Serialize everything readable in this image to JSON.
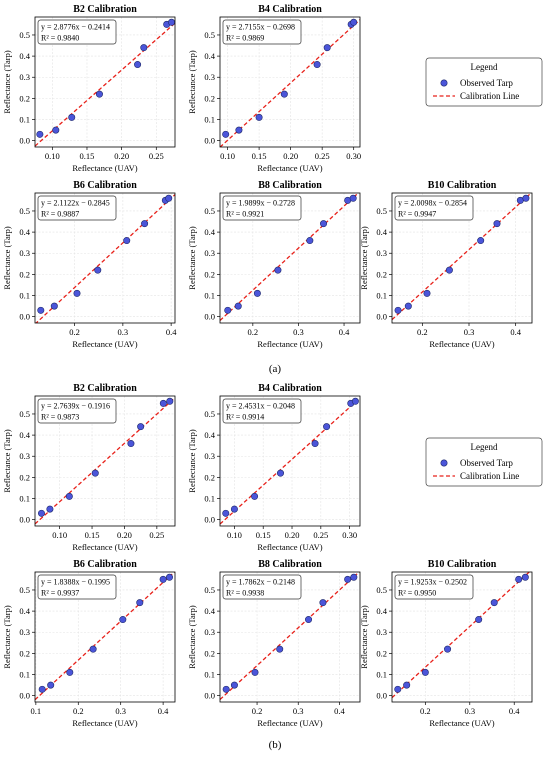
{
  "panel_a_label": "(a)",
  "panel_b_label": "(b)",
  "legend": {
    "title": "Legend",
    "observed": "Observed Tarp",
    "line": "Calibration Line"
  },
  "colors": {
    "point_fill": "#4b55d9",
    "point_edge": "#1f2a6b",
    "line": "#e8211a",
    "grid": "#e3e3e3"
  },
  "chart_data": [
    {
      "type": "scatter",
      "title": "B2 Calibration",
      "panel": "a",
      "xlabel": "Reflectance (UAV)",
      "ylabel": "Reflectance (Tarp)",
      "equation": "y = 2.8776x − 0.2414",
      "r2": "R² = 0.9840",
      "slope": 2.8776,
      "intercept": -0.2414,
      "xlim": [
        0.075,
        0.277
      ],
      "ylim": [
        -0.03,
        0.585
      ],
      "xticks": [
        0.1,
        0.15,
        0.2,
        0.25
      ],
      "xtick_labels": [
        "0.10",
        "0.15",
        "0.20",
        "0.25"
      ],
      "yticks": [
        0,
        0.1,
        0.2,
        0.3,
        0.4,
        0.5
      ],
      "ytick_labels": [
        "0.0",
        "0.1",
        "0.2",
        "0.3",
        "0.4",
        "0.5"
      ],
      "points": [
        [
          0.082,
          0.03
        ],
        [
          0.105,
          0.05
        ],
        [
          0.128,
          0.11
        ],
        [
          0.168,
          0.22
        ],
        [
          0.223,
          0.36
        ],
        [
          0.232,
          0.44
        ],
        [
          0.265,
          0.55
        ],
        [
          0.272,
          0.56
        ]
      ]
    },
    {
      "type": "scatter",
      "title": "B4 Calibration",
      "panel": "a",
      "xlabel": "Reflectance (UAV)",
      "ylabel": "Reflectance (Tarp)",
      "equation": "y = 2.7155x − 0.2698",
      "r2": "R² = 0.9869",
      "slope": 2.7155,
      "intercept": -0.2698,
      "xlim": [
        0.088,
        0.31
      ],
      "ylim": [
        -0.03,
        0.585
      ],
      "xticks": [
        0.1,
        0.15,
        0.2,
        0.25,
        0.3
      ],
      "xtick_labels": [
        "0.10",
        "0.15",
        "0.20",
        "0.25",
        "0.30"
      ],
      "yticks": [
        0,
        0.1,
        0.2,
        0.3,
        0.4,
        0.5
      ],
      "ytick_labels": [
        "0.0",
        "0.1",
        "0.2",
        "0.3",
        "0.4",
        "0.5"
      ],
      "points": [
        [
          0.097,
          0.03
        ],
        [
          0.118,
          0.05
        ],
        [
          0.15,
          0.11
        ],
        [
          0.19,
          0.22
        ],
        [
          0.242,
          0.36
        ],
        [
          0.258,
          0.44
        ],
        [
          0.296,
          0.55
        ],
        [
          0.3,
          0.56
        ]
      ]
    },
    {
      "type": "scatter",
      "title": "B6 Calibration",
      "panel": "a",
      "xlabel": "Reflectance (UAV)",
      "ylabel": "Reflectance (Tarp)",
      "equation": "y = 2.1122x − 0.2845",
      "r2": "R² = 0.9887",
      "slope": 2.1122,
      "intercept": -0.2845,
      "xlim": [
        0.118,
        0.408
      ],
      "ylim": [
        -0.03,
        0.585
      ],
      "xticks": [
        0.2,
        0.3,
        0.4
      ],
      "xtick_labels": [
        "0.2",
        "0.3",
        "0.4"
      ],
      "yticks": [
        0,
        0.1,
        0.2,
        0.3,
        0.4,
        0.5
      ],
      "ytick_labels": [
        "0.0",
        "0.1",
        "0.2",
        "0.3",
        "0.4",
        "0.5"
      ],
      "points": [
        [
          0.13,
          0.03
        ],
        [
          0.158,
          0.05
        ],
        [
          0.205,
          0.11
        ],
        [
          0.248,
          0.22
        ],
        [
          0.308,
          0.36
        ],
        [
          0.345,
          0.44
        ],
        [
          0.388,
          0.55
        ],
        [
          0.395,
          0.56
        ]
      ]
    },
    {
      "type": "scatter",
      "title": "B8 Calibration",
      "panel": "a",
      "xlabel": "Reflectance (UAV)",
      "ylabel": "Reflectance (Tarp)",
      "equation": "y = 1.9899x − 0.2728",
      "r2": "R² = 0.9921",
      "slope": 1.9899,
      "intercept": -0.2728,
      "xlim": [
        0.128,
        0.435
      ],
      "ylim": [
        -0.03,
        0.585
      ],
      "xticks": [
        0.2,
        0.3,
        0.4
      ],
      "xtick_labels": [
        "0.2",
        "0.3",
        "0.4"
      ],
      "yticks": [
        0,
        0.1,
        0.2,
        0.3,
        0.4,
        0.5
      ],
      "ytick_labels": [
        "0.0",
        "0.1",
        "0.2",
        "0.3",
        "0.4",
        "0.5"
      ],
      "points": [
        [
          0.145,
          0.03
        ],
        [
          0.168,
          0.05
        ],
        [
          0.21,
          0.11
        ],
        [
          0.255,
          0.22
        ],
        [
          0.325,
          0.36
        ],
        [
          0.355,
          0.44
        ],
        [
          0.408,
          0.55
        ],
        [
          0.42,
          0.56
        ]
      ]
    },
    {
      "type": "scatter",
      "title": "B10 Calibration",
      "panel": "a",
      "xlabel": "Reflectance (UAV)",
      "ylabel": "Reflectance (Tarp)",
      "equation": "y = 2.0098x − 0.2854",
      "r2": "R² = 0.9947",
      "slope": 2.0098,
      "intercept": -0.2854,
      "xlim": [
        0.135,
        0.435
      ],
      "ylim": [
        -0.03,
        0.585
      ],
      "xticks": [
        0.2,
        0.3,
        0.4
      ],
      "xtick_labels": [
        "0.2",
        "0.3",
        "0.4"
      ],
      "yticks": [
        0,
        0.1,
        0.2,
        0.3,
        0.4,
        0.5
      ],
      "ytick_labels": [
        "0.0",
        "0.1",
        "0.2",
        "0.3",
        "0.4",
        "0.5"
      ],
      "points": [
        [
          0.148,
          0.03
        ],
        [
          0.17,
          0.05
        ],
        [
          0.21,
          0.11
        ],
        [
          0.258,
          0.22
        ],
        [
          0.325,
          0.36
        ],
        [
          0.36,
          0.44
        ],
        [
          0.41,
          0.55
        ],
        [
          0.422,
          0.56
        ]
      ]
    },
    {
      "type": "scatter",
      "title": "B2 Calibration",
      "panel": "b",
      "xlabel": "Reflectance (UAV)",
      "ylabel": "Reflectance (Tarp)",
      "equation": "y = 2.7639x − 0.1916",
      "r2": "R² = 0.9873",
      "slope": 2.7639,
      "intercept": -0.1916,
      "xlim": [
        0.062,
        0.278
      ],
      "ylim": [
        -0.03,
        0.585
      ],
      "xticks": [
        0.1,
        0.15,
        0.2,
        0.25
      ],
      "xtick_labels": [
        "0.10",
        "0.15",
        "0.20",
        "0.25"
      ],
      "yticks": [
        0,
        0.1,
        0.2,
        0.3,
        0.4,
        0.5
      ],
      "ytick_labels": [
        "0.0",
        "0.1",
        "0.2",
        "0.3",
        "0.4",
        "0.5"
      ],
      "points": [
        [
          0.072,
          0.03
        ],
        [
          0.085,
          0.05
        ],
        [
          0.115,
          0.11
        ],
        [
          0.155,
          0.22
        ],
        [
          0.21,
          0.36
        ],
        [
          0.225,
          0.44
        ],
        [
          0.26,
          0.55
        ],
        [
          0.27,
          0.56
        ]
      ]
    },
    {
      "type": "scatter",
      "title": "B4 Calibration",
      "panel": "b",
      "xlabel": "Reflectance (UAV)",
      "ylabel": "Reflectance (Tarp)",
      "equation": "y = 2.4531x − 0.2048",
      "r2": "R² = 0.9914",
      "slope": 2.4531,
      "intercept": -0.2048,
      "xlim": [
        0.075,
        0.318
      ],
      "ylim": [
        -0.03,
        0.585
      ],
      "xticks": [
        0.1,
        0.15,
        0.2,
        0.25,
        0.3
      ],
      "xtick_labels": [
        "0.10",
        "0.15",
        "0.20",
        "0.25",
        "0.30"
      ],
      "yticks": [
        0,
        0.1,
        0.2,
        0.3,
        0.4,
        0.5
      ],
      "ytick_labels": [
        "0.0",
        "0.1",
        "0.2",
        "0.3",
        "0.4",
        "0.5"
      ],
      "points": [
        [
          0.085,
          0.03
        ],
        [
          0.1,
          0.05
        ],
        [
          0.135,
          0.11
        ],
        [
          0.18,
          0.22
        ],
        [
          0.24,
          0.36
        ],
        [
          0.26,
          0.44
        ],
        [
          0.302,
          0.55
        ],
        [
          0.31,
          0.56
        ]
      ]
    },
    {
      "type": "scatter",
      "title": "B6 Calibration",
      "panel": "b",
      "xlabel": "Reflectance (UAV)",
      "ylabel": "Reflectance (Tarp)",
      "equation": "y = 1.8388x − 0.1995",
      "r2": "R² = 0.9937",
      "slope": 1.8388,
      "intercept": -0.1995,
      "xlim": [
        0.098,
        0.428
      ],
      "ylim": [
        -0.03,
        0.585
      ],
      "xticks": [
        0.1,
        0.2,
        0.3,
        0.4
      ],
      "xtick_labels": [
        "0.1",
        "0.2",
        "0.3",
        "0.4"
      ],
      "yticks": [
        0,
        0.1,
        0.2,
        0.3,
        0.4,
        0.5
      ],
      "ytick_labels": [
        "0.0",
        "0.1",
        "0.2",
        "0.3",
        "0.4",
        "0.5"
      ],
      "points": [
        [
          0.115,
          0.03
        ],
        [
          0.135,
          0.05
        ],
        [
          0.18,
          0.11
        ],
        [
          0.235,
          0.22
        ],
        [
          0.305,
          0.36
        ],
        [
          0.345,
          0.44
        ],
        [
          0.4,
          0.55
        ],
        [
          0.415,
          0.56
        ]
      ]
    },
    {
      "type": "scatter",
      "title": "B8 Calibration",
      "panel": "b",
      "xlabel": "Reflectance (UAV)",
      "ylabel": "Reflectance (Tarp)",
      "equation": "y = 1.7862x − 0.2148",
      "r2": "R² = 0.9938",
      "slope": 1.7862,
      "intercept": -0.2148,
      "xlim": [
        0.11,
        0.45
      ],
      "ylim": [
        -0.03,
        0.585
      ],
      "xticks": [
        0.2,
        0.3,
        0.4
      ],
      "xtick_labels": [
        "0.2",
        "0.3",
        "0.4"
      ],
      "yticks": [
        0,
        0.1,
        0.2,
        0.3,
        0.4,
        0.5
      ],
      "ytick_labels": [
        "0.0",
        "0.1",
        "0.2",
        "0.3",
        "0.4",
        "0.5"
      ],
      "points": [
        [
          0.125,
          0.03
        ],
        [
          0.145,
          0.05
        ],
        [
          0.195,
          0.11
        ],
        [
          0.255,
          0.22
        ],
        [
          0.325,
          0.36
        ],
        [
          0.36,
          0.44
        ],
        [
          0.42,
          0.55
        ],
        [
          0.435,
          0.56
        ]
      ]
    },
    {
      "type": "scatter",
      "title": "B10 Calibration",
      "panel": "b",
      "xlabel": "Reflectance (UAV)",
      "ylabel": "Reflectance (Tarp)",
      "equation": "y = 1.9253x − 0.2502",
      "r2": "R² = 0.9950",
      "slope": 1.9253,
      "intercept": -0.2502,
      "xlim": [
        0.125,
        0.44
      ],
      "ylim": [
        -0.03,
        0.585
      ],
      "xticks": [
        0.2,
        0.3,
        0.4
      ],
      "xtick_labels": [
        "0.2",
        "0.3",
        "0.4"
      ],
      "yticks": [
        0,
        0.1,
        0.2,
        0.3,
        0.4,
        0.5
      ],
      "ytick_labels": [
        "0.0",
        "0.1",
        "0.2",
        "0.3",
        "0.4",
        "0.5"
      ],
      "points": [
        [
          0.138,
          0.03
        ],
        [
          0.158,
          0.05
        ],
        [
          0.2,
          0.11
        ],
        [
          0.25,
          0.22
        ],
        [
          0.32,
          0.36
        ],
        [
          0.355,
          0.44
        ],
        [
          0.41,
          0.55
        ],
        [
          0.425,
          0.56
        ]
      ]
    }
  ]
}
